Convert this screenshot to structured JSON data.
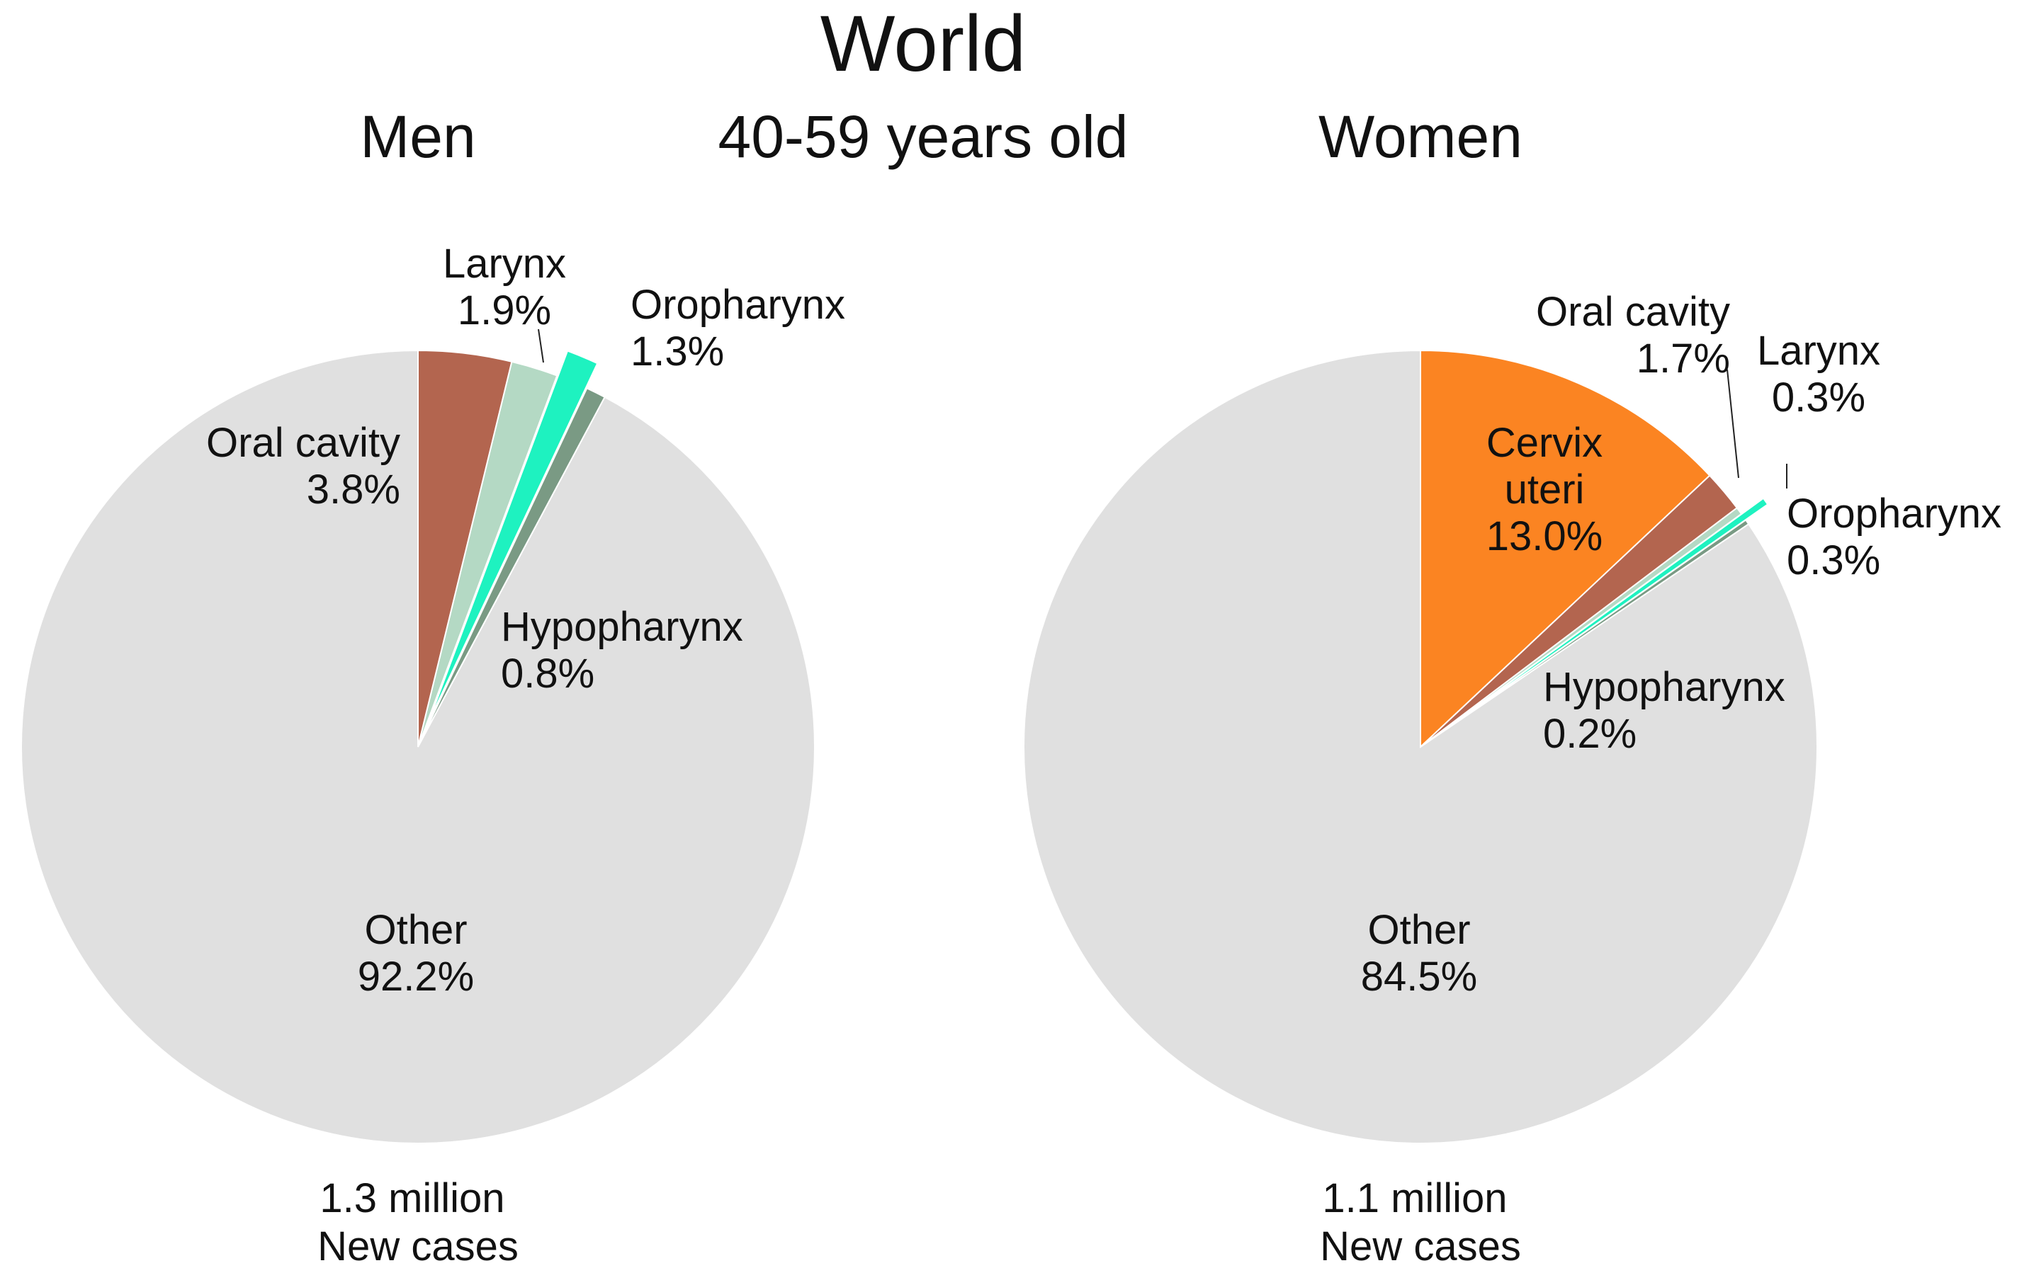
{
  "title": "World",
  "subtitle": "40-59 years old",
  "chart_data": [
    {
      "type": "pie",
      "title": "Men",
      "footer": [
        "1.3 million",
        "New cases"
      ],
      "slices": [
        {
          "name": "Oral cavity",
          "value": 3.8,
          "label_lines": [
            "Oral cavity",
            "3.8%"
          ],
          "color": "#B3654F",
          "exploded": false
        },
        {
          "name": "Larynx",
          "value": 1.9,
          "label_lines": [
            "Larynx",
            "1.9%"
          ],
          "color": "#B4D9C4",
          "exploded": false
        },
        {
          "name": "Oropharynx",
          "value": 1.3,
          "label_lines": [
            "Oropharynx",
            "1.3%"
          ],
          "color": "#1EF2C0",
          "exploded": true
        },
        {
          "name": "Hypopharynx",
          "value": 0.8,
          "label_lines": [
            "Hypopharynx",
            "0.8%"
          ],
          "color": "#7A9A84",
          "exploded": false
        },
        {
          "name": "Other",
          "value": 92.2,
          "label_lines": [
            "Other",
            "92.2%"
          ],
          "color": "#E0E0E0",
          "exploded": false
        }
      ]
    },
    {
      "type": "pie",
      "title": "Women",
      "footer": [
        "1.1 million",
        "New cases"
      ],
      "slices": [
        {
          "name": "Cervix uteri",
          "value": 13.0,
          "label_lines": [
            "Cervix",
            "uteri",
            "13.0%"
          ],
          "color": "#FB8422",
          "exploded": false
        },
        {
          "name": "Oral cavity",
          "value": 1.7,
          "label_lines": [
            "Oral cavity",
            "1.7%"
          ],
          "color": "#B3654F",
          "exploded": false
        },
        {
          "name": "Larynx",
          "value": 0.3,
          "label_lines": [
            "Larynx",
            "0.3%"
          ],
          "color": "#B4D9C4",
          "exploded": false
        },
        {
          "name": "Oropharynx",
          "value": 0.3,
          "label_lines": [
            "Oropharynx",
            "0.3%"
          ],
          "color": "#1EF2C0",
          "exploded": true
        },
        {
          "name": "Hypopharynx",
          "value": 0.2,
          "label_lines": [
            "Hypopharynx",
            "0.2%"
          ],
          "color": "#7A9A84",
          "exploded": false
        },
        {
          "name": "Other",
          "value": 84.5,
          "label_lines": [
            "Other",
            "84.5%"
          ],
          "color": "#E0E0E0",
          "exploded": false
        }
      ]
    }
  ]
}
